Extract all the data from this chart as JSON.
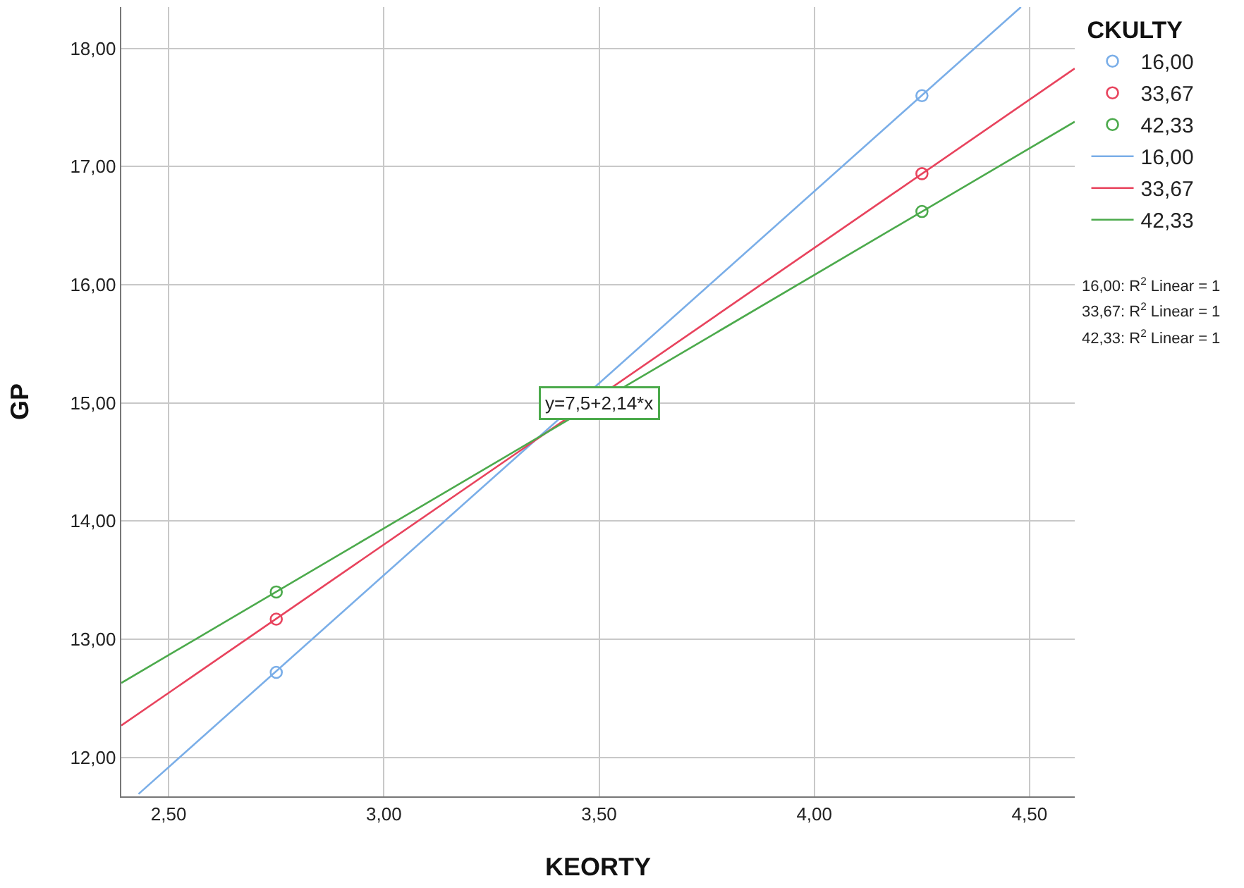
{
  "chart_data": {
    "type": "scatter",
    "xlabel": "KEORTY",
    "ylabel": "GP",
    "legend_title": "CKULTY",
    "xlim": [
      2.39,
      4.605
    ],
    "ylim": [
      11.67,
      18.35
    ],
    "xticks": [
      {
        "value": 2.5,
        "label": "2,50"
      },
      {
        "value": 3,
        "label": "3,00"
      },
      {
        "value": 3.5,
        "label": "3,50"
      },
      {
        "value": 4,
        "label": "4,00"
      },
      {
        "value": 4.5,
        "label": "4,50"
      }
    ],
    "yticks": [
      {
        "value": 12,
        "label": "12,00"
      },
      {
        "value": 13,
        "label": "13,00"
      },
      {
        "value": 14,
        "label": "14,00"
      },
      {
        "value": 15,
        "label": "15,00"
      },
      {
        "value": 16,
        "label": "16,00"
      },
      {
        "value": 17,
        "label": "17,00"
      },
      {
        "value": 18,
        "label": "18,00"
      }
    ],
    "grid": true,
    "legend": "right",
    "series": [
      {
        "name": "16,00",
        "marker": "circle",
        "color": "#7aaee8",
        "x": [
          2.75,
          4.25
        ],
        "values": [
          12.72,
          17.6
        ]
      },
      {
        "name": "33,67",
        "marker": "circle",
        "color": "#e8435d",
        "x": [
          2.75,
          4.25
        ],
        "values": [
          13.17,
          16.94
        ]
      },
      {
        "name": "42,33",
        "marker": "circle",
        "color": "#4caa4c",
        "x": [
          2.75,
          4.25
        ],
        "values": [
          13.4,
          16.62
        ]
      },
      {
        "name": "16,00",
        "type": "line",
        "marker": "none",
        "color": "#7aaee8",
        "x": [
          2.43,
          4.48
        ],
        "values": [
          11.69,
          18.35
        ]
      },
      {
        "name": "33,67",
        "type": "line",
        "marker": "none",
        "color": "#e8435d",
        "x": [
          2.39,
          4.605
        ],
        "values": [
          12.27,
          17.83
        ]
      },
      {
        "name": "42,33",
        "type": "line",
        "marker": "none",
        "color": "#4caa4c",
        "x": [
          2.39,
          4.605
        ],
        "values": [
          12.63,
          17.38
        ]
      }
    ],
    "annotations": [
      {
        "text": "y=7,5+2,14*x",
        "x": 3.5,
        "y": 15
      },
      "16,00: R$^{2}$ Linear = 1",
      "33,67: R$^{2}$ Linear = 1",
      "42,33: R$^{2}$ Linear = 1"
    ]
  }
}
